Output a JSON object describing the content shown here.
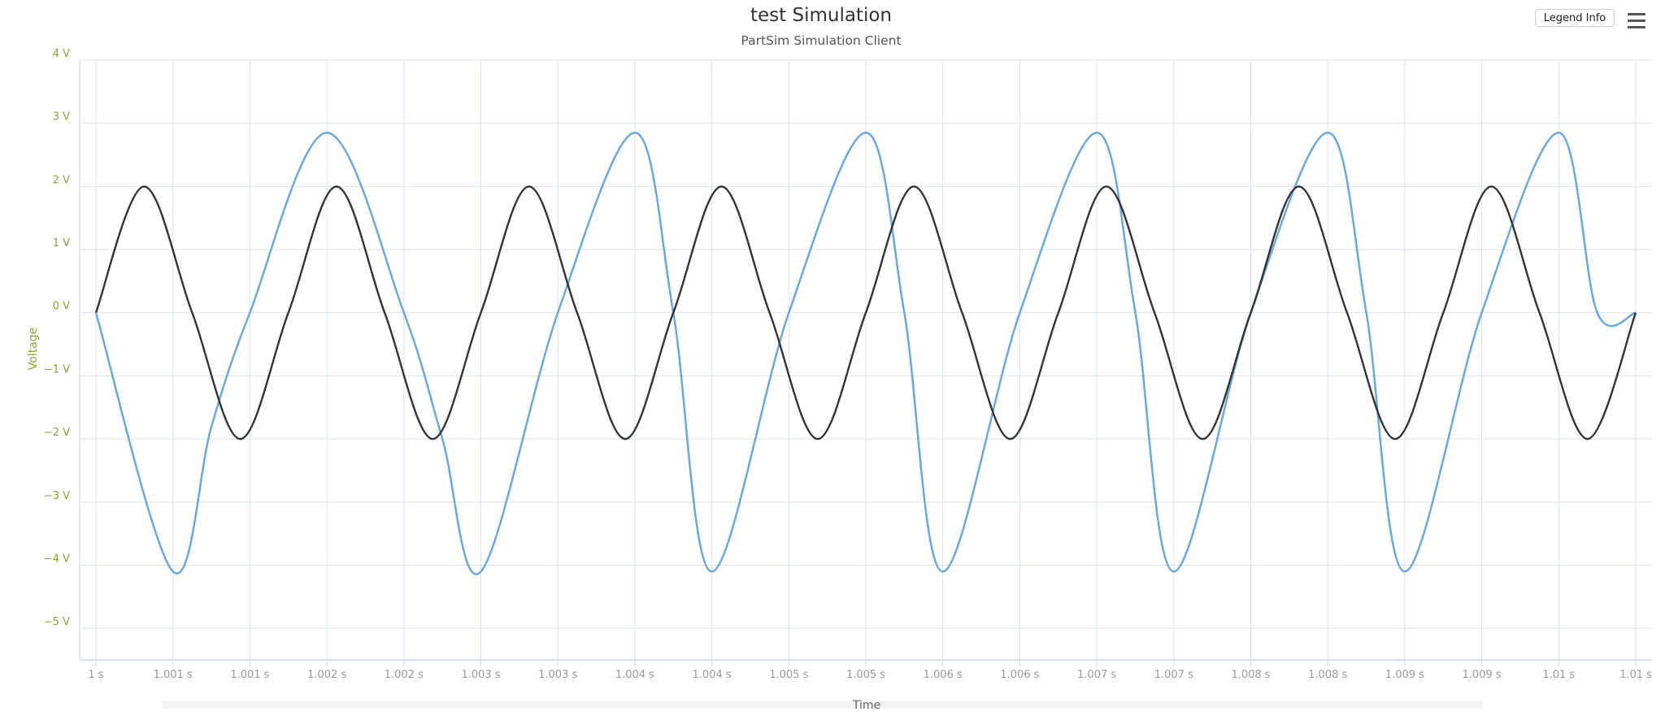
{
  "title": "test Simulation",
  "subtitle": "PartSim Simulation Client",
  "legend_button": "Legend Info",
  "menu_icon": "hamburger-menu-icon",
  "colors": {
    "series1": "#6aa9dd",
    "series2": "#333333",
    "axis_label": "#8aa23a",
    "grid": "#d9e2ee",
    "tick_text": "#999999"
  },
  "chart_data": {
    "type": "line",
    "title": "test Simulation",
    "subtitle": "PartSim Simulation Client",
    "xlabel": "Time",
    "ylabel": "Voltage",
    "xlim": [
      1.0,
      1.01
    ],
    "ylim": [
      -5.5,
      4.0
    ],
    "grid": true,
    "legend": "none",
    "yticks": [
      -5,
      -4,
      -3,
      -2,
      -1,
      0,
      1,
      2,
      3,
      4
    ],
    "ytick_labels": [
      "−5 V",
      "−4 V",
      "−3 V",
      "−2 V",
      "−1 V",
      "0 V",
      "1 V",
      "2 V",
      "3 V",
      "4 V"
    ],
    "xticks": [
      1.0,
      1.0005,
      1.001,
      1.0015,
      1.002,
      1.0025,
      1.003,
      1.0035,
      1.004,
      1.0045,
      1.005,
      1.0055,
      1.006,
      1.0065,
      1.007,
      1.0075,
      1.008,
      1.0085,
      1.009,
      1.0095,
      1.01
    ],
    "xtick_labels": [
      "1 s",
      "1.001 s",
      "1.001 s",
      "1.002 s",
      "1.002 s",
      "1.003 s",
      "1.003 s",
      "1.004 s",
      "1.004 s",
      "1.005 s",
      "1.005 s",
      "1.006 s",
      "1.006 s",
      "1.007 s",
      "1.007 s",
      "1.008 s",
      "1.008 s",
      "1.009 s",
      "1.009 s",
      "1.01 s",
      "1.01 s"
    ],
    "series": [
      {
        "color": "#6aa9dd",
        "x": [
          1.0,
          1.0005,
          1.00075,
          1.001,
          1.0015,
          1.002,
          1.00225,
          1.0025,
          1.003,
          1.0035,
          1.00375,
          1.004,
          1.0045,
          1.005,
          1.00525,
          1.0055,
          1.006,
          1.0065,
          1.00675,
          1.007,
          1.0075,
          1.008,
          1.00825,
          1.0085,
          1.009,
          1.0095,
          1.00975,
          1.01
        ],
        "y": [
          0,
          -4.1,
          -1.8,
          0,
          2.85,
          0,
          -2.0,
          -4.1,
          0,
          2.85,
          0,
          -4.1,
          0,
          2.85,
          0,
          -4.1,
          0,
          2.85,
          0,
          -4.1,
          0,
          2.85,
          0,
          -4.1,
          0,
          2.85,
          0,
          0
        ]
      },
      {
        "color": "#333333",
        "x": [
          1.0,
          1.0003125,
          1.000625,
          1.0009375,
          1.00125,
          1.0015625,
          1.001875,
          1.0021875,
          1.0025,
          1.0028125,
          1.003125,
          1.0034375,
          1.00375,
          1.0040625,
          1.004375,
          1.0046875,
          1.005,
          1.0053125,
          1.005625,
          1.0059375,
          1.00625,
          1.0065625,
          1.006875,
          1.0071875,
          1.0075,
          1.0078125,
          1.008125,
          1.0084375,
          1.00875,
          1.0090625,
          1.009375,
          1.0096875,
          1.01
        ],
        "y": [
          0,
          2,
          0,
          -2,
          0,
          2,
          0,
          -2,
          0,
          2,
          0,
          -2,
          0,
          2,
          0,
          -2,
          0,
          2,
          0,
          -2,
          0,
          2,
          0,
          -2,
          0,
          2,
          0,
          -2,
          0,
          2,
          0,
          -2,
          0
        ]
      }
    ]
  }
}
